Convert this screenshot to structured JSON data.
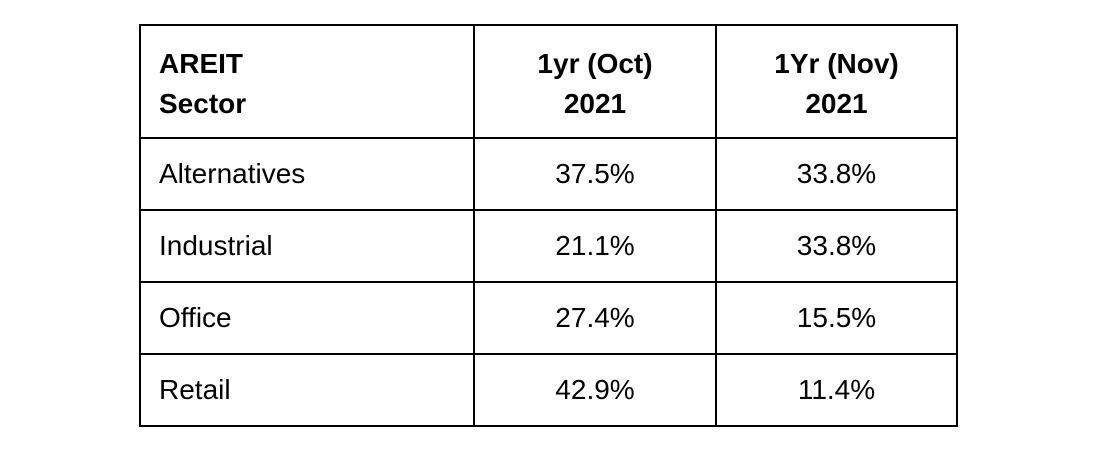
{
  "table": {
    "header": [
      "AREIT Sector",
      "1yr (Oct) 2021",
      "1Yr (Nov) 2021"
    ],
    "rows": [
      [
        "Alternatives",
        "37.5%",
        "33.8%"
      ],
      [
        "Industrial",
        "21.1%",
        "33.8%"
      ],
      [
        "Office",
        "27.4%",
        "15.5%"
      ],
      [
        "Retail",
        "42.9%",
        "11.4%"
      ]
    ]
  }
}
